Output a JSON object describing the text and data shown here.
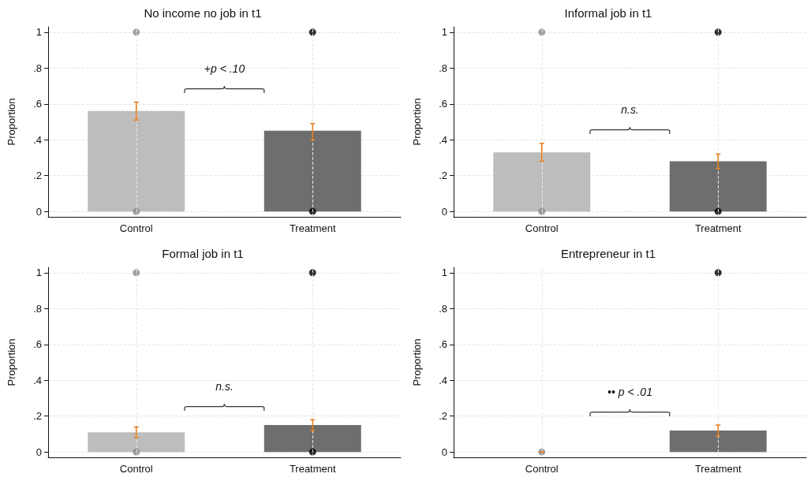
{
  "chart_data": [
    {
      "type": "bar",
      "title": "No income no job in t1",
      "ylabel": "Proportion",
      "categories": [
        "Control",
        "Treatment"
      ],
      "ylim": [
        -0.03,
        1.03
      ],
      "yticks": [
        {
          "value": 0,
          "label": "0"
        },
        {
          "value": 0.2,
          "label": ".2"
        },
        {
          "value": 0.4,
          "label": ".4"
        },
        {
          "value": 0.6,
          "label": ".6"
        },
        {
          "value": 0.8,
          "label": ".8"
        },
        {
          "value": 1,
          "label": "1"
        }
      ],
      "grid": true,
      "marker": "circle",
      "annotations": [
        "+p < .10"
      ],
      "series": [
        {
          "colors": [
            "#bdbdbd",
            "#6e6e6e"
          ],
          "values": [
            0.56,
            0.45
          ],
          "errors": [
            [
              0.51,
              0.61
            ],
            [
              0.4,
              0.49
            ]
          ]
        },
        {
          "type": "scatter",
          "color": "#8c8c8c",
          "x": [
            "Control",
            "Control"
          ],
          "values": [
            0,
            1
          ]
        },
        {
          "type": "scatter",
          "color": "#000000",
          "x": [
            "Treatment",
            "Treatment"
          ],
          "values": [
            0,
            1
          ]
        }
      ]
    },
    {
      "type": "bar",
      "title": "Informal job in t1",
      "ylabel": "Proportion",
      "categories": [
        "Control",
        "Treatment"
      ],
      "ylim": [
        -0.03,
        1.03
      ],
      "yticks": [
        {
          "value": 0,
          "label": "0"
        },
        {
          "value": 0.2,
          "label": ".2"
        },
        {
          "value": 0.4,
          "label": ".4"
        },
        {
          "value": 0.6,
          "label": ".6"
        },
        {
          "value": 0.8,
          "label": ".8"
        },
        {
          "value": 1,
          "label": "1"
        }
      ],
      "grid": true,
      "marker": "circle",
      "annotations": [
        "n.s."
      ],
      "series": [
        {
          "colors": [
            "#bdbdbd",
            "#6e6e6e"
          ],
          "values": [
            0.33,
            0.28
          ],
          "errors": [
            [
              0.28,
              0.38
            ],
            [
              0.24,
              0.32
            ]
          ]
        },
        {
          "type": "scatter",
          "color": "#8c8c8c",
          "x": [
            "Control",
            "Control"
          ],
          "values": [
            0,
            1
          ]
        },
        {
          "type": "scatter",
          "color": "#000000",
          "x": [
            "Treatment",
            "Treatment"
          ],
          "values": [
            0,
            1
          ]
        }
      ]
    },
    {
      "type": "bar",
      "title": "Formal job in t1",
      "ylabel": "Proportion",
      "categories": [
        "Control",
        "Treatment"
      ],
      "ylim": [
        -0.03,
        1.03
      ],
      "yticks": [
        {
          "value": 0,
          "label": "0"
        },
        {
          "value": 0.2,
          "label": ".2"
        },
        {
          "value": 0.4,
          "label": ".4"
        },
        {
          "value": 0.6,
          "label": ".6"
        },
        {
          "value": 0.8,
          "label": ".8"
        },
        {
          "value": 1,
          "label": "1"
        }
      ],
      "grid": true,
      "marker": "circle",
      "annotations": [
        "n.s."
      ],
      "series": [
        {
          "colors": [
            "#bdbdbd",
            "#6e6e6e"
          ],
          "values": [
            0.11,
            0.15
          ],
          "errors": [
            [
              0.08,
              0.14
            ],
            [
              0.12,
              0.18
            ]
          ]
        },
        {
          "type": "scatter",
          "color": "#8c8c8c",
          "x": [
            "Control",
            "Control"
          ],
          "values": [
            0,
            1
          ]
        },
        {
          "type": "scatter",
          "color": "#000000",
          "x": [
            "Treatment",
            "Treatment"
          ],
          "values": [
            0,
            1
          ]
        }
      ]
    },
    {
      "type": "bar",
      "title": "Entrepreneur in t1",
      "ylabel": "Proportion",
      "categories": [
        "Control",
        "Treatment"
      ],
      "ylim": [
        -0.03,
        1.03
      ],
      "yticks": [
        {
          "value": 0,
          "label": "0"
        },
        {
          "value": 0.2,
          "label": ".2"
        },
        {
          "value": 0.4,
          "label": ".4"
        },
        {
          "value": 0.6,
          "label": ".6"
        },
        {
          "value": 0.8,
          "label": ".8"
        },
        {
          "value": 1,
          "label": "1"
        }
      ],
      "grid": true,
      "marker": "circle",
      "annotations": [
        "•• p < .01"
      ],
      "series": [
        {
          "colors": [
            "#bdbdbd",
            "#6e6e6e"
          ],
          "values": [
            0,
            0.12
          ],
          "errors": [
            [
              0,
              0
            ],
            [
              0.09,
              0.15
            ]
          ]
        },
        {
          "type": "scatter",
          "color": "#8c8c8c",
          "x": [
            "Control"
          ],
          "values": [
            0
          ]
        },
        {
          "type": "scatter",
          "color": "#000000",
          "x": [
            "Treatment"
          ],
          "values": [
            1
          ]
        }
      ]
    }
  ]
}
